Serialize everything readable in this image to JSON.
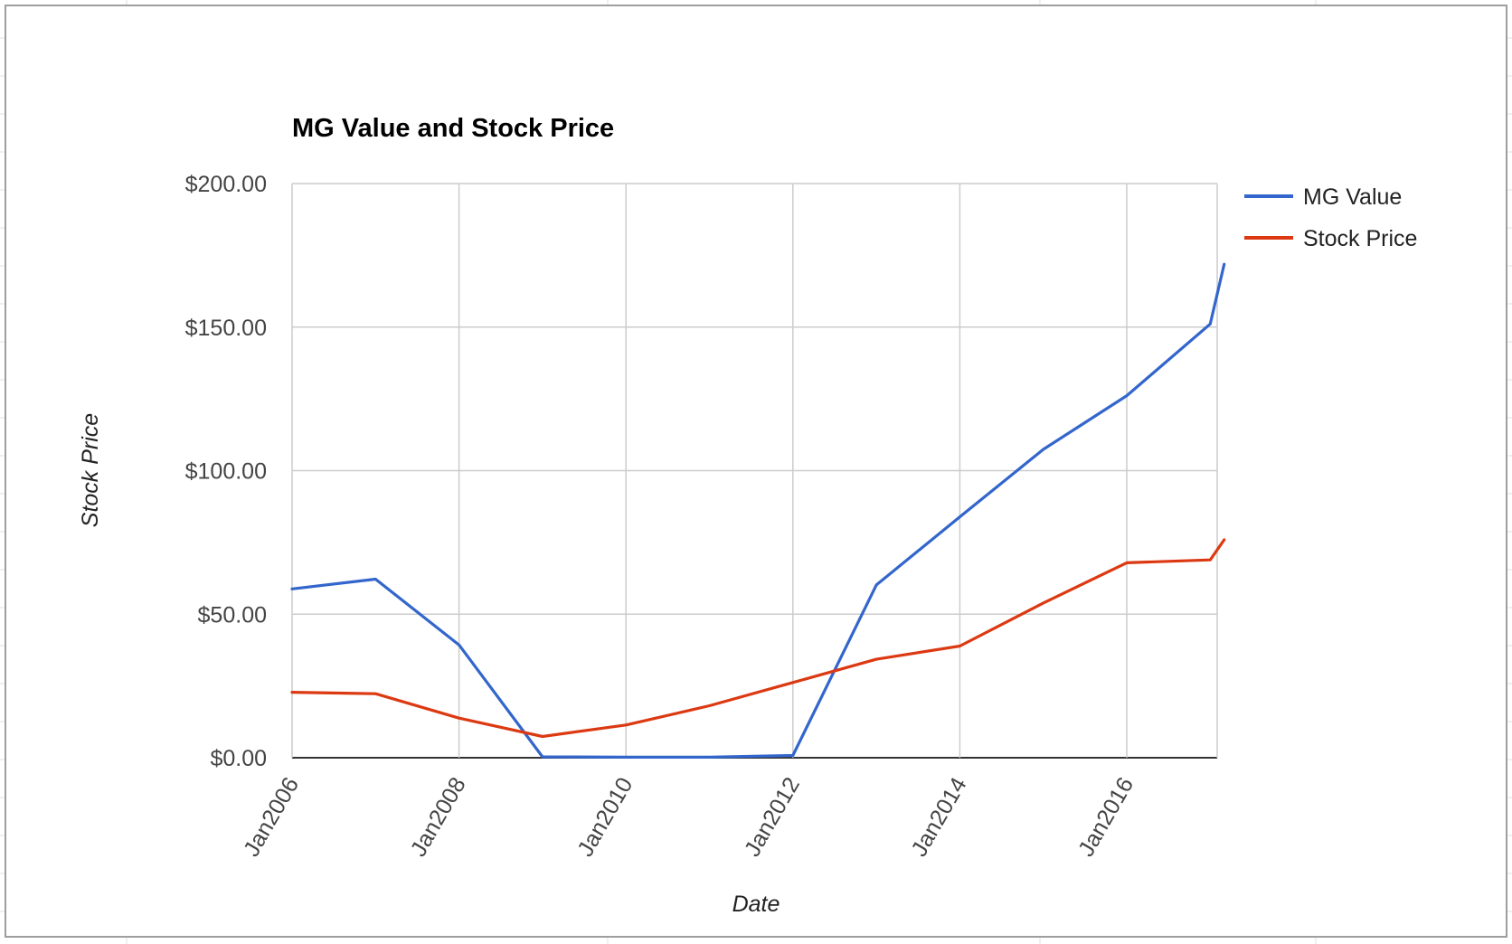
{
  "chart_data": {
    "type": "line",
    "title": "MG Value and Stock Price",
    "xlabel": "Date",
    "ylabel": "Stock Price",
    "ylim": [
      0,
      200
    ],
    "xlim": [
      "2006-01",
      "2017-02"
    ],
    "y_ticks": [
      0,
      50,
      100,
      150,
      200
    ],
    "y_tick_labels": [
      "$0.00",
      "$50.00",
      "$100.00",
      "$150.00",
      "$200.00"
    ],
    "x_ticks": [
      "2006-01",
      "2008-01",
      "2010-01",
      "2012-01",
      "2014-01",
      "2016-01"
    ],
    "x_tick_labels": [
      "Jan2006",
      "Jan2008",
      "Jan2010",
      "Jan2012",
      "Jan2014",
      "Jan2016"
    ],
    "grid": true,
    "legend_position": "right",
    "x": [
      "2006-01",
      "2007-01",
      "2008-01",
      "2009-01",
      "2010-01",
      "2011-01",
      "2012-01",
      "2013-01",
      "2014-01",
      "2015-01",
      "2016-01",
      "2017-01",
      "2017-03"
    ],
    "series": [
      {
        "name": "MG Value",
        "color": "#3366cc",
        "values": [
          58.8,
          62.2,
          39.3,
          0.3,
          0.2,
          0.2,
          0.8,
          60.2,
          83.9,
          107.4,
          126.1,
          151.1,
          171.9
        ]
      },
      {
        "name": "Stock Price",
        "color": "#dc3912",
        "values": [
          22.8,
          22.3,
          13.8,
          7.4,
          11.4,
          18.1,
          26.2,
          34.3,
          38.9,
          53.9,
          67.9,
          68.9,
          75.9
        ]
      }
    ]
  }
}
